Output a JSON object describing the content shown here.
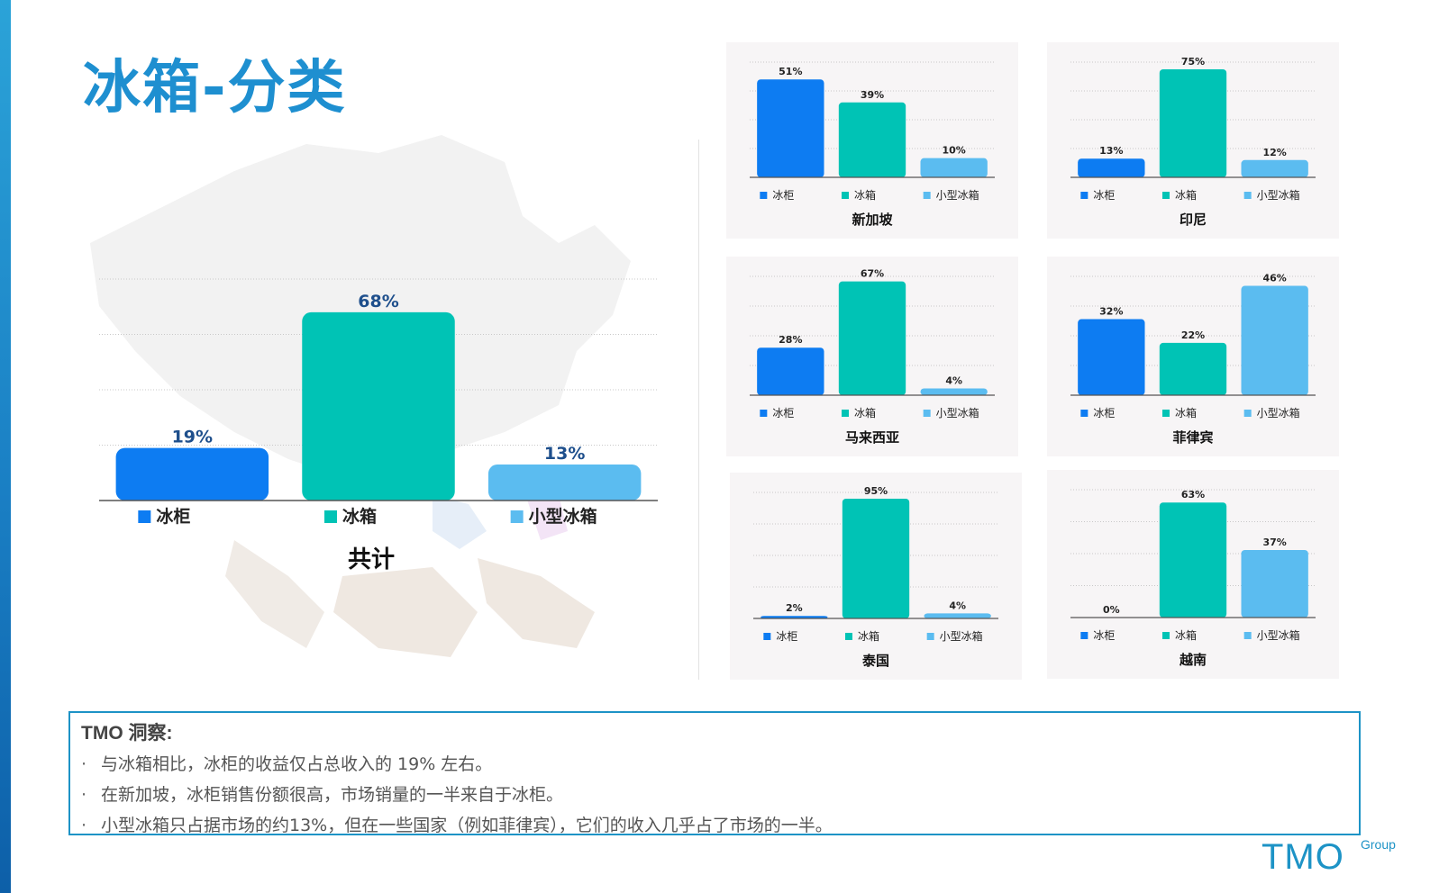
{
  "page": {
    "title": "冰箱-分类"
  },
  "colors": {
    "blue": "#0d7cf2",
    "teal": "#00c3b5",
    "light_blue": "#5bbcf0",
    "title": "#1e8fd0",
    "box_border": "#1d93c6"
  },
  "chart_data": [
    {
      "type": "bar",
      "title": "共计",
      "categories": [
        "冰柜",
        "冰箱",
        "小型冰箱"
      ],
      "values": [
        19,
        68,
        13
      ],
      "labels": [
        "19%",
        "68%",
        "13%"
      ],
      "ylim": [
        0,
        80
      ],
      "legend": "bottom",
      "grid": true
    },
    {
      "type": "bar",
      "title": "新加坡",
      "categories": [
        "冰柜",
        "冰箱",
        "小型冰箱"
      ],
      "values": [
        51,
        39,
        10
      ],
      "labels": [
        "51%",
        "39%",
        "10%"
      ],
      "ylim": [
        0,
        60
      ],
      "legend": "bottom",
      "grid": true
    },
    {
      "type": "bar",
      "title": "印尼",
      "categories": [
        "冰柜",
        "冰箱",
        "小型冰箱"
      ],
      "values": [
        13,
        75,
        12
      ],
      "labels": [
        "13%",
        "75%",
        "12%"
      ],
      "ylim": [
        0,
        80
      ],
      "legend": "bottom",
      "grid": true
    },
    {
      "type": "bar",
      "title": "马来西亚",
      "categories": [
        "冰柜",
        "冰箱",
        "小型冰箱"
      ],
      "values": [
        28,
        67,
        4
      ],
      "labels": [
        "28%",
        "67%",
        "4%"
      ],
      "ylim": [
        0,
        70
      ],
      "legend": "bottom",
      "grid": true
    },
    {
      "type": "bar",
      "title": "菲律宾",
      "categories": [
        "冰柜",
        "冰箱",
        "小型冰箱"
      ],
      "values": [
        32,
        22,
        46
      ],
      "labels": [
        "32%",
        "22%",
        "46%"
      ],
      "ylim": [
        0,
        50
      ],
      "legend": "bottom",
      "grid": true
    },
    {
      "type": "bar",
      "title": "泰国",
      "categories": [
        "冰柜",
        "冰箱",
        "小型冰箱"
      ],
      "values": [
        2,
        95,
        4
      ],
      "labels": [
        "2%",
        "95%",
        "4%"
      ],
      "ylim": [
        0,
        100
      ],
      "legend": "bottom",
      "grid": true
    },
    {
      "type": "bar",
      "title": "越南",
      "categories": [
        "冰柜",
        "冰箱",
        "小型冰箱"
      ],
      "values": [
        0,
        63,
        37
      ],
      "labels": [
        "0%",
        "63%",
        "37%"
      ],
      "ylim": [
        0,
        70
      ],
      "legend": "bottom",
      "grid": true
    }
  ],
  "insights": {
    "title": "TMO 洞察:",
    "bullet": "·",
    "items": [
      "与冰箱相比，冰柜的收益仅占总收入的 19% 左右。",
      "在新加坡，冰柜销售份额很高，市场销量的一半来自于冰柜。",
      "小型冰箱只占据市场的约13%，但在一些国家（例如菲律宾），它们的收入几乎占了市场的一半。"
    ]
  },
  "logo": {
    "main": "TMO",
    "sub": "Group"
  }
}
